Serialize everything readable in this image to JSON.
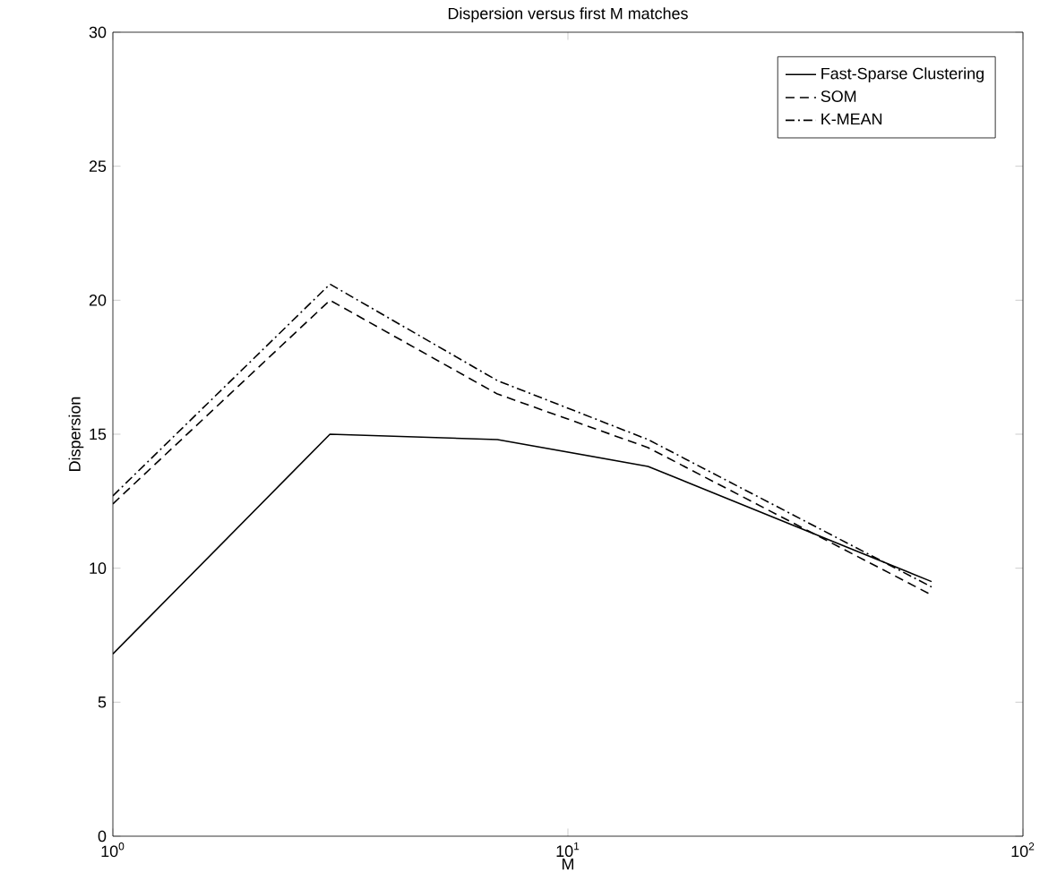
{
  "chart_data": {
    "type": "line",
    "title": "Dispersion versus first M matches",
    "xlabel": "M",
    "ylabel": "Dispersion",
    "log": "x",
    "xlim": [
      1,
      100
    ],
    "ylim": [
      0,
      30
    ],
    "xticks": [
      {
        "value": 1,
        "label": "10$^{0}$"
      },
      {
        "value": 10,
        "label": "10$^{1}$"
      },
      {
        "value": 100,
        "label": "10$^{2}$"
      }
    ],
    "yticks": [
      0,
      5,
      10,
      15,
      20,
      25,
      30
    ],
    "x": [
      1,
      3,
      7,
      15,
      63
    ],
    "series": [
      {
        "name": "Fast-Sparse Clustering",
        "color": "#000000",
        "line_style": "solid",
        "values": [
          6.8,
          15.0,
          14.8,
          13.8,
          9.5
        ]
      },
      {
        "name": "SOM",
        "color": "#000000",
        "line_style": "dashed",
        "values": [
          12.4,
          20.0,
          16.5,
          14.5,
          9.0
        ]
      },
      {
        "name": "K-MEAN",
        "color": "#000000",
        "line_style": "dashdot",
        "values": [
          12.7,
          20.6,
          17.0,
          14.8,
          9.3
        ]
      }
    ],
    "legend": "top right",
    "grid": false,
    "marker": "none"
  }
}
